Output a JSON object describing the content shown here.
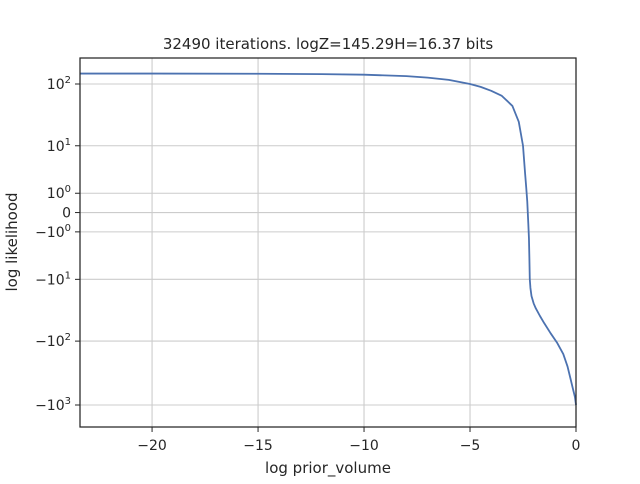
{
  "chart_data": {
    "type": "line",
    "title": "32490 iterations. logZ=145.29H=16.37 bits",
    "xlabel": "log prior_volume",
    "ylabel": "log likelihood",
    "xlim": [
      -23.4,
      0
    ],
    "yscale": "symlog",
    "grid": true,
    "x_ticks": [
      {
        "value": -20,
        "label": "−20"
      },
      {
        "value": -15,
        "label": "−15"
      },
      {
        "value": -10,
        "label": "−10"
      },
      {
        "value": -5,
        "label": "−5"
      },
      {
        "value": 0,
        "label": "0"
      }
    ],
    "y_ticks": [
      {
        "value": 100,
        "base": "10",
        "exp": "2",
        "neg": false
      },
      {
        "value": 10,
        "base": "10",
        "exp": "1",
        "neg": false
      },
      {
        "value": 1,
        "base": "10",
        "exp": "0",
        "neg": false
      },
      {
        "value": 0,
        "base": "0",
        "exp": "",
        "neg": false
      },
      {
        "value": -1,
        "base": "10",
        "exp": "0",
        "neg": true
      },
      {
        "value": -10,
        "base": "10",
        "exp": "1",
        "neg": true
      },
      {
        "value": -100,
        "base": "10",
        "exp": "2",
        "neg": true
      },
      {
        "value": -1000,
        "base": "10",
        "exp": "3",
        "neg": true
      }
    ],
    "series": [
      {
        "color": "#4c72b0",
        "x": [
          -23.4,
          -20,
          -15,
          -12,
          -10,
          -8,
          -7,
          -6,
          -5,
          -4.5,
          -4,
          -3.5,
          -3,
          -2.7,
          -2.5,
          -2.4,
          -2.35,
          -2.3,
          -2.25,
          -2.22,
          -2.2,
          -2.18,
          -2.15,
          -2.1,
          -2.0,
          -1.9,
          -1.7,
          -1.5,
          -1.2,
          -0.9,
          -0.6,
          -0.4,
          -0.25,
          -0.15,
          -0.05,
          0
        ],
        "y": [
          146,
          145.8,
          145,
          143,
          140,
          133,
          126,
          116,
          100,
          90,
          78,
          65,
          45,
          25,
          10,
          3,
          1.5,
          0.5,
          -0.5,
          -1.5,
          -4,
          -10,
          -14,
          -19,
          -25,
          -30,
          -40,
          -52,
          -75,
          -105,
          -160,
          -250,
          -400,
          -550,
          -750,
          -1000
        ]
      }
    ]
  }
}
